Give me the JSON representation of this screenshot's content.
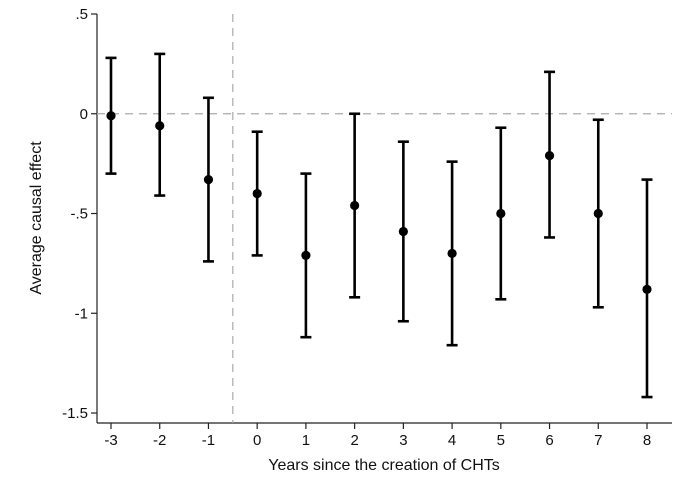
{
  "chart_data": {
    "type": "scatter",
    "title": "",
    "xlabel": "Years since the creation of CHTs",
    "ylabel": "Average causal effect",
    "x": [
      -3,
      -2,
      -1,
      0,
      1,
      2,
      3,
      4,
      5,
      6,
      7,
      8
    ],
    "x_tick_labels": [
      "-3",
      "-2",
      "-1",
      "0",
      "1",
      "2",
      "3",
      "4",
      "5",
      "6",
      "7",
      "8"
    ],
    "y_ticks": [
      0.5,
      0,
      -0.5,
      -1,
      -1.5
    ],
    "y_tick_labels": [
      ".5",
      "0",
      "-.5",
      "-1",
      "-1.5"
    ],
    "ylim": [
      -1.55,
      0.5
    ],
    "series": [
      {
        "estimate": [
          -0.01,
          -0.06,
          -0.33,
          -0.4,
          -0.71,
          -0.46,
          -0.59,
          -0.7,
          -0.5,
          -0.21,
          -0.5,
          -0.88
        ],
        "ci_lower": [
          -0.3,
          -0.41,
          -0.74,
          -0.71,
          -1.12,
          -0.92,
          -1.04,
          -1.16,
          -0.93,
          -0.62,
          -0.97,
          -1.42
        ],
        "ci_upper": [
          0.28,
          0.3,
          0.08,
          -0.09,
          -0.3,
          0.0,
          -0.14,
          -0.24,
          -0.07,
          0.21,
          -0.03,
          -0.33
        ]
      }
    ],
    "reference_lines": {
      "horizontal_y": 0,
      "vertical_x": -0.5
    },
    "grid": false,
    "legend": "none",
    "colors": {
      "points": "#000000",
      "reference": "#aaaaaa"
    }
  }
}
